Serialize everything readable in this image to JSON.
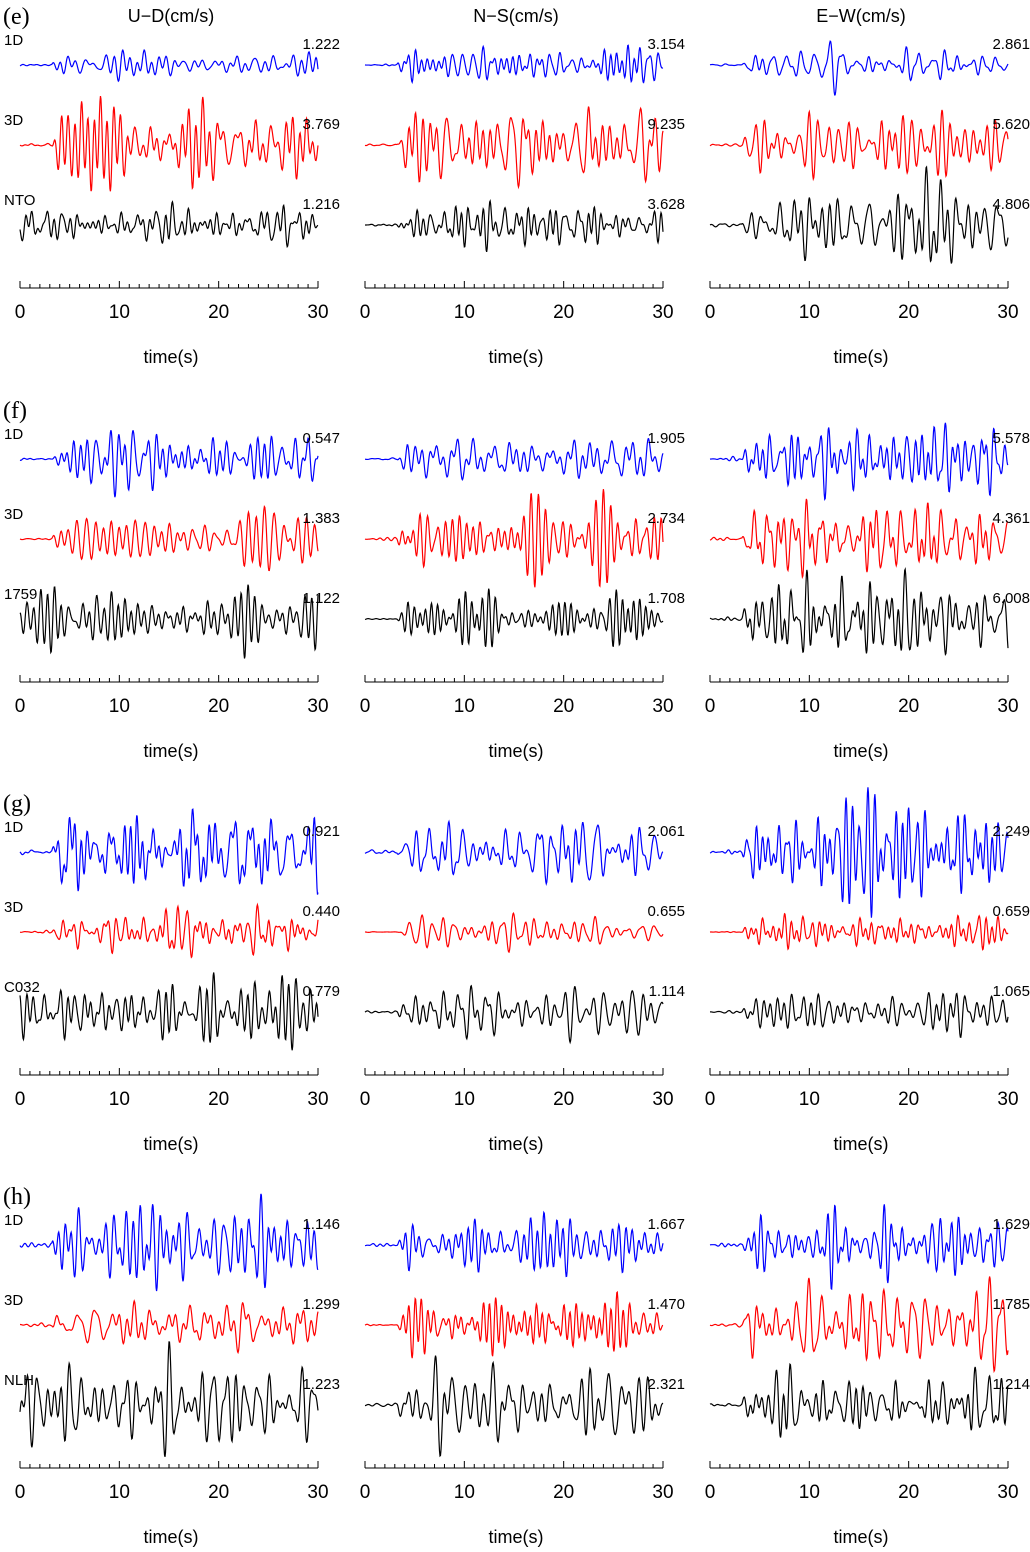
{
  "colors": {
    "1D": "#0000ff",
    "3D": "#ff0000",
    "obs": "#000000"
  },
  "chart_data": {
    "type": "line",
    "description_free": true,
    "column_headers": [
      "U−D(cm/s)",
      "N−S(cm/s)",
      "E−W(cm/s)"
    ],
    "xlabel": "time(s)",
    "xlim": [
      0,
      30
    ],
    "xticks": [
      "0",
      "10",
      "20",
      "30"
    ],
    "minor_tick_step": 1,
    "grid": false,
    "panels": [
      {
        "label": "(e)",
        "rows": [
          {
            "name": "1D",
            "color_key": "1D",
            "peaks": [
              "1.222",
              "3.154",
              "2.861"
            ]
          },
          {
            "name": "3D",
            "color_key": "3D",
            "peaks": [
              "3.769",
              "9.235",
              "5.620"
            ]
          },
          {
            "name": "NTO",
            "color_key": "obs",
            "peaks": [
              "1.216",
              "3.628",
              "4.806"
            ]
          }
        ]
      },
      {
        "label": "(f)",
        "rows": [
          {
            "name": "1D",
            "color_key": "1D",
            "peaks": [
              "0.547",
              "1.905",
              "5.578"
            ]
          },
          {
            "name": "3D",
            "color_key": "3D",
            "peaks": [
              "1.383",
              "2.734",
              "4.361"
            ]
          },
          {
            "name": "1759",
            "color_key": "obs",
            "peaks": [
              "1.122",
              "1.708",
              "6.008"
            ]
          }
        ]
      },
      {
        "label": "(g)",
        "rows": [
          {
            "name": "1D",
            "color_key": "1D",
            "peaks": [
              "0.921",
              "2.061",
              "2.249"
            ]
          },
          {
            "name": "3D",
            "color_key": "3D",
            "peaks": [
              "0.440",
              "0.655",
              "0.659"
            ]
          },
          {
            "name": "C032",
            "color_key": "obs",
            "peaks": [
              "0.779",
              "1.114",
              "1.065"
            ]
          }
        ]
      },
      {
        "label": "(h)",
        "rows": [
          {
            "name": "1D",
            "color_key": "1D",
            "peaks": [
              "1.146",
              "1.667",
              "1.629"
            ]
          },
          {
            "name": "3D",
            "color_key": "3D",
            "peaks": [
              "1.299",
              "1.470",
              "1.785"
            ]
          },
          {
            "name": "NLH",
            "color_key": "obs",
            "peaks": [
              "1.223",
              "2.321",
              "1.214"
            ]
          }
        ]
      }
    ]
  }
}
